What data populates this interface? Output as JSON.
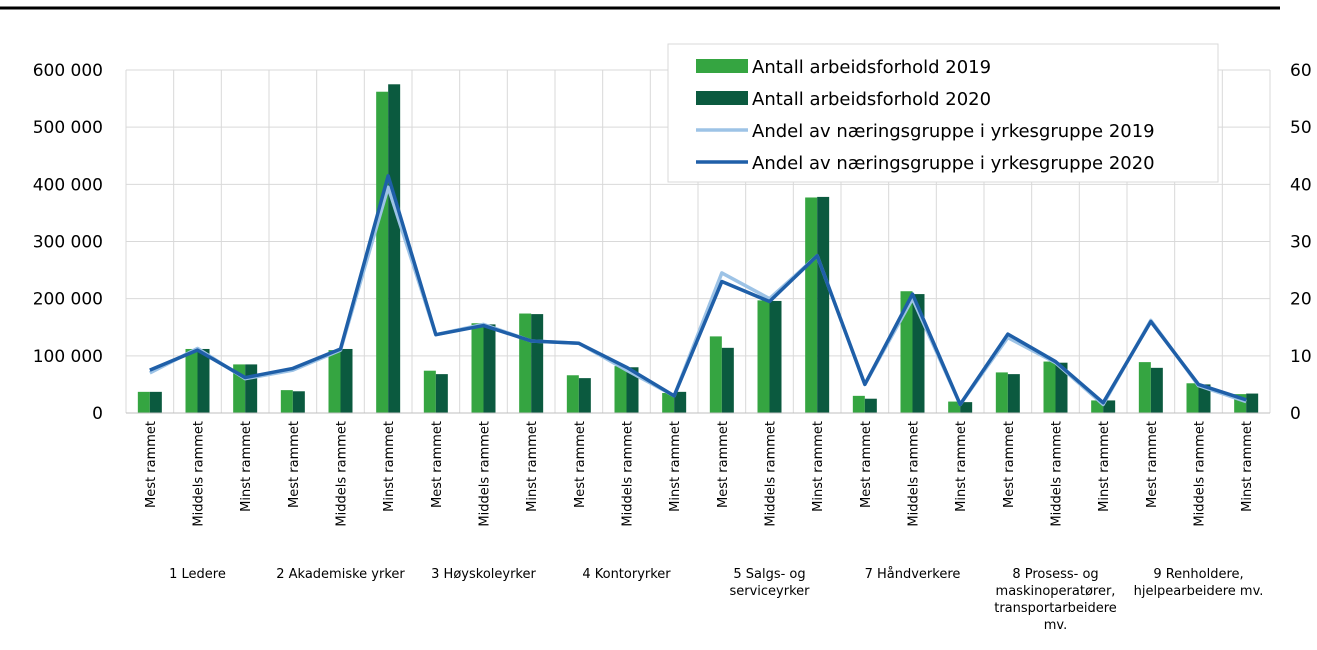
{
  "chart_data": {
    "type": "bar_line",
    "categories": [
      "Mest rammet",
      "Middels rammet",
      "Minst rammet",
      "Mest rammet",
      "Middels rammet",
      "Minst rammet",
      "Mest rammet",
      "Middels rammet",
      "Minst rammet",
      "Mest rammet",
      "Middels rammet",
      "Minst rammet",
      "Mest rammet",
      "Middels rammet",
      "Minst rammet",
      "Mest rammet",
      "Middels rammet",
      "Minst rammet",
      "Mest rammet",
      "Middels rammet",
      "Minst rammet",
      "Mest rammet",
      "Middels rammet",
      "Minst rammet"
    ],
    "groups": [
      "1 Ledere",
      "2 Akademiske yrker",
      "3 Høyskoleyrker",
      "4 Kontoryrker",
      "5 Salgs- og serviceyrker",
      "7 Håndverkere",
      "8 Prosess- og maskinoperatører, transportarbeidere mv.",
      "9 Renholdere, hjelpearbeidere mv."
    ],
    "series": [
      {
        "name": "Antall arbeidsforhold 2019",
        "type": "bar",
        "color": "#35a541",
        "values": [
          37000,
          112000,
          85000,
          40000,
          110000,
          562000,
          74000,
          157000,
          174000,
          66000,
          82000,
          35000,
          134000,
          197000,
          377000,
          30000,
          213000,
          20000,
          71000,
          90000,
          22000,
          89000,
          52000,
          33000
        ]
      },
      {
        "name": "Antall arbeidsforhold 2020",
        "type": "bar",
        "color": "#0b5a3f",
        "values": [
          37000,
          112000,
          85000,
          38000,
          112000,
          575000,
          68000,
          155000,
          173000,
          61000,
          80000,
          37000,
          114000,
          196000,
          378000,
          25000,
          208000,
          19000,
          68000,
          88000,
          22000,
          79000,
          50000,
          34000
        ]
      },
      {
        "name": "Andel av næringsgruppe i yrkesgruppe 2019",
        "type": "line",
        "axis": "y2",
        "color": "#9dc3e6",
        "values": [
          7,
          11.3,
          6,
          7.5,
          11,
          39.5,
          13.7,
          15.5,
          12.6,
          12.2,
          7.5,
          3,
          24.5,
          20,
          27.5,
          5,
          20,
          1.5,
          13.2,
          8.8,
          1.5,
          16.2,
          4.8,
          2
        ]
      },
      {
        "name": "Andel av næringsgruppe i yrkesgruppe 2020",
        "type": "line",
        "axis": "y2",
        "color": "#1f5fa8",
        "values": [
          7.5,
          11,
          6.2,
          7.8,
          11.2,
          41.5,
          13.7,
          15.3,
          12.6,
          12.2,
          8,
          3,
          23,
          19.5,
          27.5,
          5,
          20.8,
          1.5,
          13.8,
          9,
          1.8,
          16,
          5,
          2.3
        ]
      }
    ],
    "ylim": [
      0,
      600000
    ],
    "yticks": [
      0,
      {
        "value": 100000,
        "label": "100 000"
      },
      {
        "value": 200000,
        "label": "200 000"
      },
      {
        "value": 300000,
        "label": "300 000"
      },
      {
        "value": 400000,
        "label": "400 000"
      },
      {
        "value": 500000,
        "label": "500 000"
      },
      {
        "value": 600000,
        "label": "600 000"
      }
    ],
    "y2lim": [
      0,
      60
    ],
    "y2ticks": [
      0,
      10,
      20,
      30,
      40,
      50,
      60
    ],
    "grid": true,
    "legend": "top-right"
  }
}
